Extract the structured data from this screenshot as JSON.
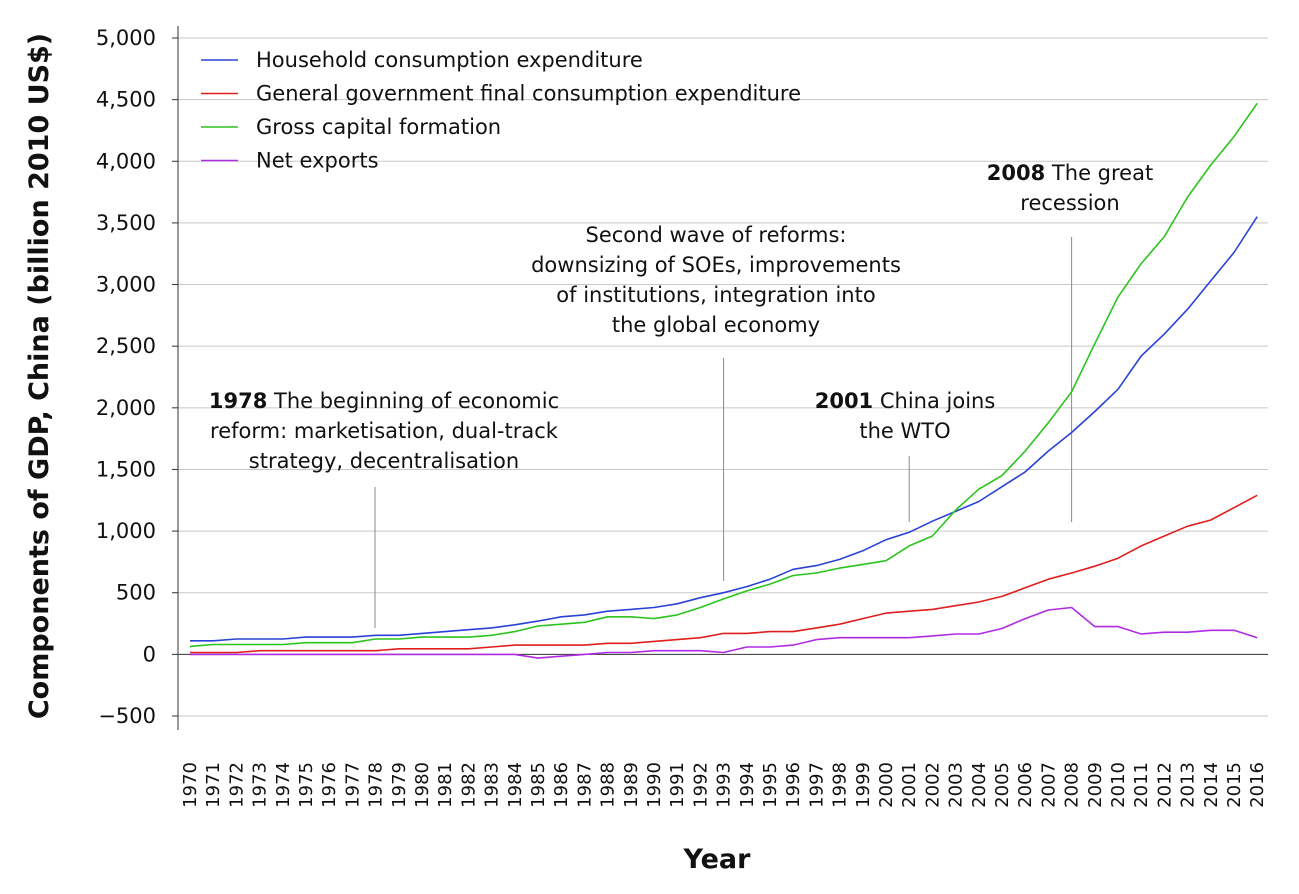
{
  "chart_data": {
    "type": "line",
    "title": "",
    "xlabel": "Year",
    "ylabel": "Components of GDP, China (billion 2010 US$)",
    "ylim": [
      -500,
      5000
    ],
    "yticks": [
      -500,
      0,
      500,
      1000,
      1500,
      2000,
      2500,
      3000,
      3500,
      4000,
      4500,
      5000
    ],
    "ytick_labels": [
      "−500",
      "0",
      "500",
      "1,000",
      "1,500",
      "2,000",
      "2,500",
      "3,000",
      "3,500",
      "4,000",
      "4,500",
      "5,000"
    ],
    "grid": "horizontal",
    "legend_position": "top-left",
    "x": [
      1970,
      1971,
      1972,
      1973,
      1974,
      1975,
      1976,
      1977,
      1978,
      1979,
      1980,
      1981,
      1982,
      1983,
      1984,
      1985,
      1986,
      1987,
      1988,
      1989,
      1990,
      1991,
      1992,
      1993,
      1994,
      1995,
      1996,
      1997,
      1998,
      1999,
      2000,
      2001,
      2002,
      2003,
      2004,
      2005,
      2006,
      2007,
      2008,
      2009,
      2010,
      2011,
      2012,
      2013,
      2014,
      2015,
      2016
    ],
    "series": [
      {
        "name": "Household consumption expenditure",
        "color": "#2a43d6",
        "values": [
          110,
          110,
          125,
          125,
          125,
          140,
          140,
          140,
          155,
          155,
          170,
          185,
          200,
          215,
          240,
          270,
          305,
          320,
          350,
          365,
          380,
          410,
          460,
          500,
          550,
          610,
          690,
          720,
          770,
          840,
          930,
          990,
          1080,
          1160,
          1240,
          1360,
          1480,
          1650,
          1800,
          1970,
          2150,
          2420,
          2600,
          2800,
          3030,
          3260,
          3550
        ]
      },
      {
        "name": "General government final consumption expenditure",
        "color": "#e01e1e",
        "values": [
          15,
          15,
          15,
          30,
          30,
          30,
          30,
          30,
          30,
          45,
          45,
          45,
          45,
          60,
          75,
          75,
          75,
          75,
          90,
          90,
          105,
          120,
          135,
          170,
          170,
          185,
          185,
          215,
          245,
          290,
          335,
          350,
          365,
          395,
          425,
          470,
          540,
          610,
          660,
          715,
          780,
          880,
          960,
          1040,
          1090,
          1190,
          1290
        ]
      },
      {
        "name": "Gross capital formation",
        "color": "#2ac41d",
        "values": [
          65,
          80,
          80,
          80,
          80,
          95,
          95,
          95,
          125,
          125,
          140,
          140,
          140,
          155,
          185,
          230,
          245,
          260,
          305,
          305,
          290,
          320,
          380,
          450,
          515,
          570,
          640,
          660,
          700,
          730,
          760,
          880,
          960,
          1170,
          1340,
          1450,
          1650,
          1880,
          2130,
          2520,
          2900,
          3170,
          3390,
          3710,
          3970,
          4200,
          4470
        ]
      },
      {
        "name": "Net exports",
        "color": "#b02ce4",
        "values": [
          0,
          0,
          0,
          0,
          0,
          0,
          0,
          0,
          0,
          0,
          0,
          0,
          0,
          0,
          0,
          -30,
          -15,
          0,
          15,
          15,
          30,
          30,
          30,
          15,
          60,
          60,
          75,
          120,
          135,
          135,
          135,
          135,
          150,
          165,
          165,
          210,
          290,
          360,
          380,
          225,
          225,
          165,
          180,
          180,
          195,
          195,
          135
        ]
      }
    ],
    "annotations": [
      {
        "bold": "1978",
        "lines": [
          "1978 The beginning of economic",
          "reform: marketisation, dual-track",
          "strategy, decentralisation"
        ],
        "year": 1978
      },
      {
        "bold": "",
        "lines": [
          "Second wave of reforms:",
          "downsizing of SOEs, improvements",
          "of institutions, integration into",
          "the global economy"
        ],
        "year": 1993
      },
      {
        "bold": "2001",
        "lines": [
          "2001 China joins",
          "the WTO"
        ],
        "year": 2001
      },
      {
        "bold": "2008",
        "lines": [
          "2008 The great",
          "recession"
        ],
        "year": 2008
      }
    ]
  }
}
